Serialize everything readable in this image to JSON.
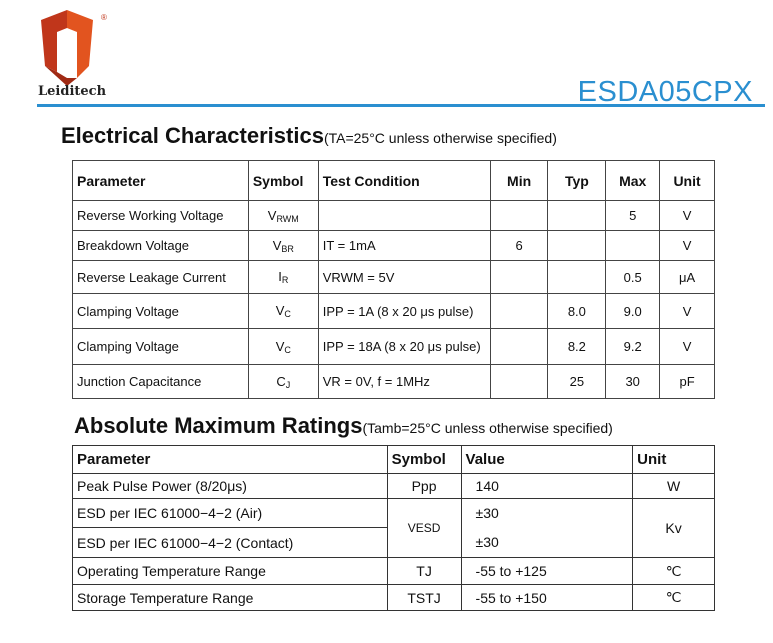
{
  "header": {
    "brand": "Leiditech",
    "registered": "®",
    "part_number": "ESDA05CPX",
    "accent_color": "#2a8fd0",
    "logo_colors": [
      "#c0361b",
      "#e2541f"
    ]
  },
  "electrical": {
    "title": "Electrical Characteristics",
    "note": "(TA=25°C unless otherwise specified)",
    "columns": [
      "Parameter",
      "Symbol",
      "Test Condition",
      "Min",
      "Typ",
      "Max",
      "Unit"
    ],
    "rows": [
      {
        "parameter": "Reverse Working Voltage",
        "symbol": "V",
        "symbol_sub": "RWM",
        "condition": "",
        "min": "",
        "typ": "",
        "max": "5",
        "unit": "V"
      },
      {
        "parameter": "Breakdown Voltage",
        "symbol": "V",
        "symbol_sub": "BR",
        "condition": "IT = 1mA",
        "min": "6",
        "typ": "",
        "max": "",
        "unit": "V"
      },
      {
        "parameter": "Reverse Leakage Current",
        "symbol": "I",
        "symbol_sub": "R",
        "condition": "VRWM  = 5V",
        "min": "",
        "typ": "",
        "max": "0.5",
        "unit": "μA"
      },
      {
        "parameter": "Clamping Voltage",
        "symbol": "V",
        "symbol_sub": "C",
        "condition": "IPP = 1A (8 x 20 μs pulse)",
        "min": "",
        "typ": "8.0",
        "max": "9.0",
        "unit": "V"
      },
      {
        "parameter": "Clamping Voltage",
        "symbol": "V",
        "symbol_sub": "C",
        "condition": "IPP = 18A (8 x 20 μs pulse)",
        "min": "",
        "typ": "8.2",
        "max": "9.2",
        "unit": "V"
      },
      {
        "parameter": "Junction Capacitance",
        "symbol": "C",
        "symbol_sub": "J",
        "condition": "VR = 0V, f = 1MHz",
        "min": "",
        "typ": "25",
        "max": "30",
        "unit": "pF"
      }
    ]
  },
  "absolute": {
    "title": "Absolute Maximum Ratings",
    "note": "(Tamb=25°C unless otherwise specified)",
    "columns": [
      "Parameter",
      "Symbol",
      "Value",
      "Unit"
    ],
    "rows": [
      {
        "parameter": "Peak Pulse Power (8/20μs)",
        "symbol": "Ppp",
        "value": "140",
        "unit": "W"
      },
      {
        "parameter": "ESD per IEC 61000−4−2 (Air)",
        "symbol": "VESD",
        "value": "±30",
        "unit": "Kv"
      },
      {
        "parameter": "ESD per IEC 61000−4−2 (Contact)",
        "value": "±30"
      },
      {
        "parameter": "Operating Temperature Range",
        "symbol": "TJ",
        "value": "-55 to +125",
        "unit": "℃"
      },
      {
        "parameter": "Storage Temperature Range",
        "symbol": "TSTJ",
        "value": "-55 to +150",
        "unit": "℃"
      }
    ]
  }
}
